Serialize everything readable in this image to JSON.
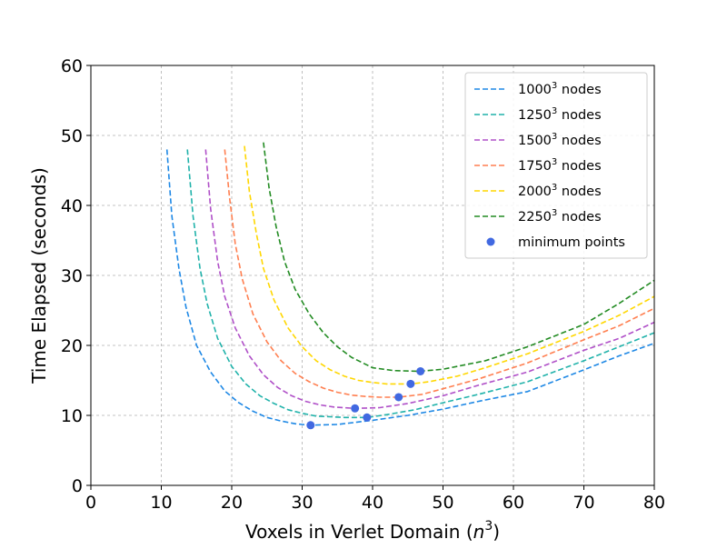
{
  "chart_data": {
    "type": "line",
    "title": "",
    "xlabel": "Voxels in Verlet Domain",
    "xlabel_math": "n",
    "xlabel_math_exp": "3",
    "ylabel": "Time Elapsed (seconds)",
    "xlim": [
      0,
      80
    ],
    "ylim": [
      0,
      60
    ],
    "xticks": [
      0,
      10,
      20,
      30,
      40,
      50,
      60,
      70,
      80
    ],
    "yticks": [
      0,
      10,
      20,
      30,
      40,
      50,
      60
    ],
    "grid": true,
    "legend_position": "top-right",
    "series": [
      {
        "name": "1000",
        "name_exp": "3",
        "name_suffix": " nodes",
        "color": "#1e88e5",
        "x": [
          10.8,
          11.5,
          12.5,
          13.5,
          15,
          17,
          19,
          21,
          23,
          25,
          27,
          29,
          31,
          35,
          40,
          45,
          50,
          55,
          62,
          70,
          75,
          80
        ],
        "y": [
          48.0,
          38.5,
          31.0,
          25.5,
          20.0,
          16.2,
          13.5,
          11.8,
          10.6,
          9.7,
          9.2,
          8.8,
          8.6,
          8.7,
          9.3,
          10.0,
          10.9,
          12.0,
          13.4,
          16.5,
          18.5,
          20.3
        ]
      },
      {
        "name": "1250",
        "name_exp": "3",
        "name_suffix": " nodes",
        "color": "#20b2aa",
        "x": [
          13.7,
          14.5,
          15.5,
          16.5,
          18,
          20,
          22,
          24,
          26,
          28,
          30,
          32,
          34,
          36,
          39.2,
          42,
          46,
          50,
          55,
          62,
          70,
          75,
          80
        ],
        "y": [
          48.0,
          38.5,
          31.0,
          26.0,
          21.0,
          17.0,
          14.5,
          12.8,
          11.7,
          10.8,
          10.3,
          9.9,
          9.8,
          9.7,
          9.7,
          10.1,
          10.8,
          11.8,
          13.0,
          14.8,
          17.8,
          19.8,
          21.8
        ]
      },
      {
        "name": "1500",
        "name_exp": "3",
        "name_suffix": " nodes",
        "color": "#b050c8",
        "x": [
          16.3,
          17,
          18,
          19,
          20.5,
          22.5,
          24.5,
          26.5,
          28.5,
          30.5,
          32.5,
          34.5,
          37.5,
          41,
          45,
          50,
          55,
          62,
          70,
          75,
          80
        ],
        "y": [
          48.0,
          39.5,
          32.0,
          27.0,
          22.5,
          18.5,
          15.8,
          14.0,
          12.8,
          12.0,
          11.5,
          11.2,
          11.0,
          11.1,
          11.7,
          12.8,
          14.3,
          16.2,
          19.3,
          21.0,
          23.3
        ]
      },
      {
        "name": "1750",
        "name_exp": "3",
        "name_suffix": " nodes",
        "color": "#ff7f50",
        "x": [
          19.0,
          19.7,
          20.5,
          21.5,
          23,
          25,
          27,
          29,
          31,
          33,
          35,
          37,
          39,
          41,
          43.7,
          47,
          50,
          55,
          62,
          70,
          75,
          80
        ],
        "y": [
          48.0,
          41.0,
          34.5,
          29.5,
          24.5,
          20.5,
          17.8,
          16.0,
          14.8,
          13.9,
          13.3,
          12.9,
          12.7,
          12.6,
          12.6,
          13.0,
          13.8,
          15.2,
          17.5,
          20.8,
          22.8,
          25.3
        ]
      },
      {
        "name": "2000",
        "name_exp": "3",
        "name_suffix": " nodes",
        "color": "#ffd700",
        "x": [
          21.8,
          22.5,
          23.5,
          24.5,
          26,
          28,
          30,
          32,
          34,
          36,
          38,
          40,
          42,
          45.4,
          48,
          52,
          56,
          62,
          70,
          75,
          80
        ],
        "y": [
          48.5,
          42.0,
          36.0,
          31.0,
          26.5,
          22.5,
          19.8,
          17.8,
          16.5,
          15.6,
          15.0,
          14.7,
          14.5,
          14.5,
          14.8,
          15.6,
          16.8,
          18.8,
          22.0,
          24.3,
          27.0
        ]
      },
      {
        "name": "2250",
        "name_exp": "3",
        "name_suffix": " nodes",
        "color": "#228b22",
        "x": [
          24.5,
          25.3,
          26.3,
          27.5,
          29,
          31,
          33,
          35,
          37,
          40,
          43,
          46.6,
          50,
          56,
          62,
          70,
          75,
          80
        ],
        "y": [
          49.0,
          42.5,
          37.0,
          32.0,
          28.0,
          24.5,
          21.8,
          19.8,
          18.3,
          16.8,
          16.4,
          16.3,
          16.6,
          17.8,
          19.8,
          23.0,
          26.0,
          29.3
        ]
      }
    ],
    "minimum_points": {
      "name": "minimum points",
      "color": "#4169e1",
      "x": [
        31.2,
        37.5,
        39.2,
        43.7,
        45.4,
        46.8
      ],
      "y": [
        8.6,
        11.0,
        9.7,
        12.6,
        14.5,
        16.3
      ]
    }
  }
}
